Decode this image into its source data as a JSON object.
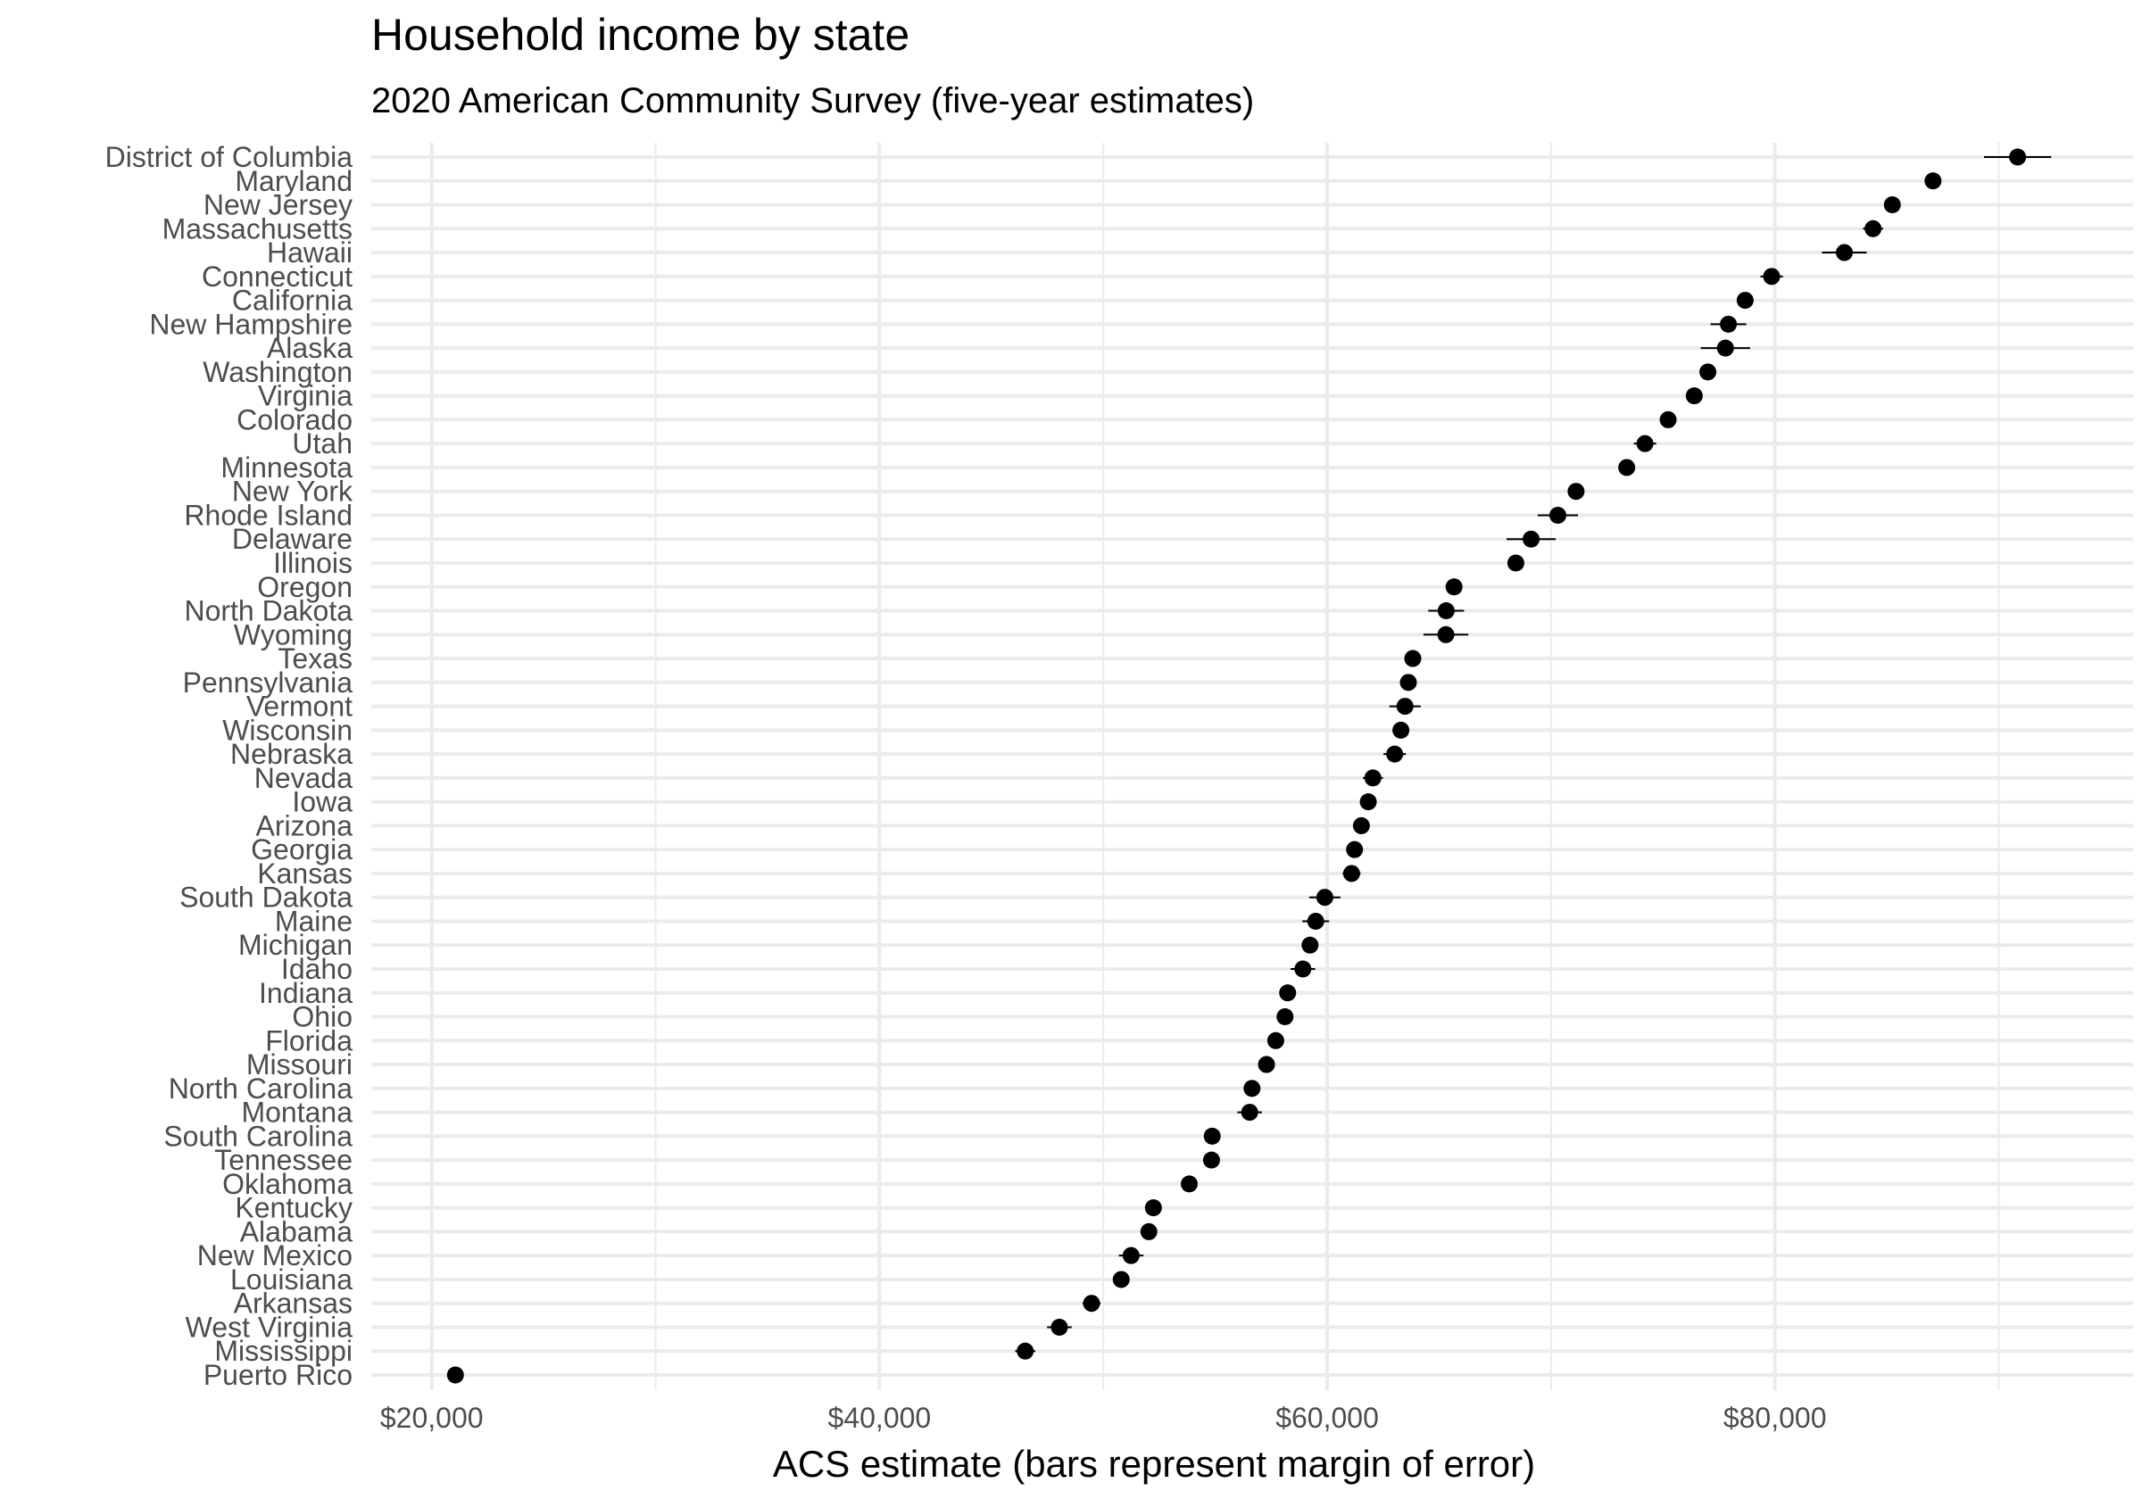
{
  "chart_data": {
    "type": "scatter",
    "title": "Household income by state",
    "subtitle": "2020 American Community Survey (five-year estimates)",
    "xlabel": "ACS estimate (bars represent margin of error)",
    "ylabel": "",
    "xlim": [
      17300,
      96000
    ],
    "x_ticks": [
      20000,
      40000,
      60000,
      80000
    ],
    "x_tick_labels": [
      "$20,000",
      "$40,000",
      "$60,000",
      "$80,000"
    ],
    "grid": true,
    "legend": "none",
    "point_color": "#000000",
    "grid_color": "#ebebeb",
    "points": [
      {
        "state": "District of Columbia",
        "estimate": 90842,
        "moe": 1500
      },
      {
        "state": "Maryland",
        "estimate": 87063,
        "moe": 300
      },
      {
        "state": "New Jersey",
        "estimate": 85245,
        "moe": 350
      },
      {
        "state": "Massachusetts",
        "estimate": 84385,
        "moe": 450
      },
      {
        "state": "Hawaii",
        "estimate": 83102,
        "moe": 1000
      },
      {
        "state": "Connecticut",
        "estimate": 79855,
        "moe": 500
      },
      {
        "state": "California",
        "estimate": 78672,
        "moe": 250
      },
      {
        "state": "New Hampshire",
        "estimate": 77923,
        "moe": 800
      },
      {
        "state": "Alaska",
        "estimate": 77790,
        "moe": 1100
      },
      {
        "state": "Washington",
        "estimate": 77006,
        "moe": 350
      },
      {
        "state": "Virginia",
        "estimate": 76398,
        "moe": 300
      },
      {
        "state": "Colorado",
        "estimate": 75231,
        "moe": 350
      },
      {
        "state": "Utah",
        "estimate": 74197,
        "moe": 500
      },
      {
        "state": "Minnesota",
        "estimate": 73382,
        "moe": 300
      },
      {
        "state": "New York",
        "estimate": 71117,
        "moe": 250
      },
      {
        "state": "Rhode Island",
        "estimate": 70305,
        "moe": 900
      },
      {
        "state": "Delaware",
        "estimate": 69110,
        "moe": 1100
      },
      {
        "state": "Illinois",
        "estimate": 68428,
        "moe": 250
      },
      {
        "state": "Oregon",
        "estimate": 65667,
        "moe": 350
      },
      {
        "state": "North Dakota",
        "estimate": 65315,
        "moe": 800
      },
      {
        "state": "Wyoming",
        "estimate": 65304,
        "moe": 1000
      },
      {
        "state": "Texas",
        "estimate": 63826,
        "moe": 200
      },
      {
        "state": "Pennsylvania",
        "estimate": 63627,
        "moe": 250
      },
      {
        "state": "Vermont",
        "estimate": 63477,
        "moe": 700
      },
      {
        "state": "Wisconsin",
        "estimate": 63293,
        "moe": 300
      },
      {
        "state": "Nebraska",
        "estimate": 63015,
        "moe": 500
      },
      {
        "state": "Nevada",
        "estimate": 62043,
        "moe": 450
      },
      {
        "state": "Iowa",
        "estimate": 61836,
        "moe": 350
      },
      {
        "state": "Arizona",
        "estimate": 61529,
        "moe": 300
      },
      {
        "state": "Georgia",
        "estimate": 61224,
        "moe": 300
      },
      {
        "state": "Kansas",
        "estimate": 61091,
        "moe": 400
      },
      {
        "state": "South Dakota",
        "estimate": 59896,
        "moe": 700
      },
      {
        "state": "Maine",
        "estimate": 59489,
        "moe": 600
      },
      {
        "state": "Michigan",
        "estimate": 59234,
        "moe": 250
      },
      {
        "state": "Idaho",
        "estimate": 58915,
        "moe": 550
      },
      {
        "state": "Indiana",
        "estimate": 58235,
        "moe": 300
      },
      {
        "state": "Ohio",
        "estimate": 58116,
        "moe": 250
      },
      {
        "state": "Florida",
        "estimate": 57703,
        "moe": 250
      },
      {
        "state": "Missouri",
        "estimate": 57290,
        "moe": 300
      },
      {
        "state": "North Carolina",
        "estimate": 56642,
        "moe": 300
      },
      {
        "state": "Montana",
        "estimate": 56539,
        "moe": 550
      },
      {
        "state": "South Carolina",
        "estimate": 54864,
        "moe": 350
      },
      {
        "state": "Tennessee",
        "estimate": 54833,
        "moe": 300
      },
      {
        "state": "Oklahoma",
        "estimate": 53840,
        "moe": 350
      },
      {
        "state": "Kentucky",
        "estimate": 52238,
        "moe": 350
      },
      {
        "state": "Alabama",
        "estimate": 52035,
        "moe": 350
      },
      {
        "state": "New Mexico",
        "estimate": 51243,
        "moe": 550
      },
      {
        "state": "Louisiana",
        "estimate": 50800,
        "moe": 350
      },
      {
        "state": "Arkansas",
        "estimate": 49475,
        "moe": 400
      },
      {
        "state": "West Virginia",
        "estimate": 48037,
        "moe": 550
      },
      {
        "state": "Mississippi",
        "estimate": 46511,
        "moe": 450
      },
      {
        "state": "Puerto Rico",
        "estimate": 21058,
        "moe": 300
      }
    ]
  }
}
